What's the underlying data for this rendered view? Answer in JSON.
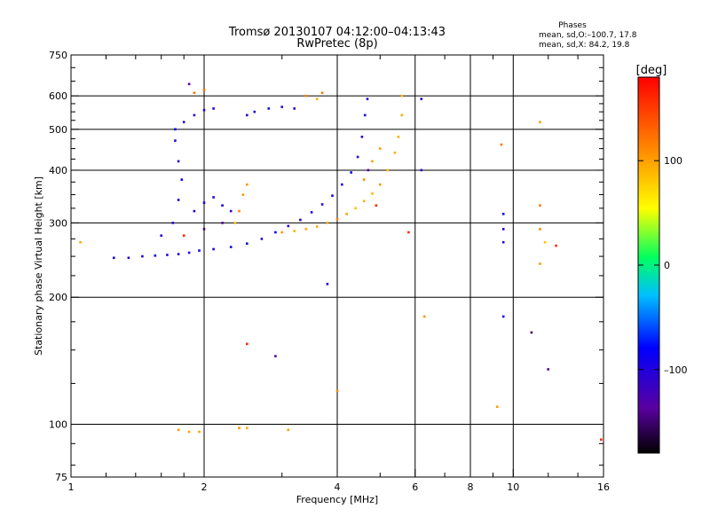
{
  "chart_data": {
    "type": "scatter",
    "title": "Tromsø 20130107 04:12:00–04:13:43",
    "subtitle": "RwPretec (8p)",
    "xlabel": "Frequency [MHz]",
    "ylabel": "Stationary phase Virtual Height [km]",
    "xscale": "log",
    "yscale": "log",
    "xlim": [
      1,
      16
    ],
    "ylim": [
      75,
      750
    ],
    "x_ticks": [
      1,
      2,
      4,
      6,
      8,
      10,
      16
    ],
    "x_tick_labels": [
      "1",
      "2",
      "4",
      "6",
      "8",
      "10",
      "16"
    ],
    "x_gridlines": [
      2,
      4,
      6,
      8,
      10
    ],
    "y_ticks": [
      75,
      100,
      200,
      300,
      400,
      500,
      600,
      750
    ],
    "y_tick_labels": [
      "75",
      "100",
      "200",
      "300",
      "400",
      "500",
      "600",
      "750"
    ],
    "y_gridlines": [
      100,
      200,
      300,
      400,
      500,
      600
    ],
    "grid": true,
    "stats": {
      "heading": "Phases",
      "line1": "mean, sd,O:–100.7, 17.8",
      "line2": "mean, sd,X:  84.2, 19.8"
    },
    "colorbar": {
      "label": "[deg]",
      "range": [
        -180,
        180
      ],
      "ticks": [
        100,
        0,
        -100
      ],
      "tick_labels": [
        "100",
        "0",
        "–100"
      ]
    },
    "series": [
      {
        "name": "O-mode trace (blue)",
        "phase_deg": -100,
        "points": [
          [
            1.25,
            248
          ],
          [
            1.35,
            248
          ],
          [
            1.45,
            250
          ],
          [
            1.55,
            251
          ],
          [
            1.65,
            252
          ],
          [
            1.75,
            253
          ],
          [
            1.85,
            255
          ],
          [
            1.95,
            258
          ],
          [
            2.1,
            260
          ],
          [
            2.3,
            263
          ],
          [
            2.5,
            268
          ],
          [
            2.7,
            275
          ],
          [
            2.9,
            285
          ],
          [
            3.1,
            295
          ],
          [
            3.3,
            305
          ],
          [
            3.5,
            318
          ],
          [
            3.7,
            332
          ],
          [
            3.9,
            348
          ],
          [
            4.1,
            370
          ],
          [
            4.3,
            395
          ],
          [
            4.45,
            430
          ],
          [
            4.55,
            480
          ],
          [
            4.62,
            540
          ],
          [
            4.68,
            590
          ],
          [
            1.6,
            280
          ],
          [
            1.7,
            300
          ],
          [
            1.75,
            340
          ],
          [
            1.78,
            380
          ],
          [
            1.75,
            420
          ],
          [
            1.72,
            470
          ],
          [
            1.72,
            500
          ],
          [
            1.8,
            520
          ],
          [
            1.9,
            540
          ],
          [
            2.0,
            555
          ],
          [
            2.1,
            560
          ],
          [
            1.9,
            320
          ],
          [
            2.0,
            335
          ],
          [
            2.1,
            345
          ],
          [
            2.2,
            330
          ],
          [
            2.3,
            320
          ],
          [
            2.5,
            540
          ],
          [
            2.6,
            550
          ],
          [
            2.8,
            560
          ],
          [
            3.0,
            565
          ],
          [
            3.2,
            560
          ],
          [
            9.5,
            315
          ],
          [
            9.5,
            290
          ],
          [
            9.5,
            270
          ],
          [
            9.5,
            180
          ],
          [
            6.2,
            400
          ],
          [
            6.2,
            590
          ],
          [
            3.8,
            215
          ]
        ]
      },
      {
        "name": "X-mode trace (yellow)",
        "phase_deg": 100,
        "points": [
          [
            3.0,
            285
          ],
          [
            3.2,
            287
          ],
          [
            3.4,
            290
          ],
          [
            3.6,
            294
          ],
          [
            3.8,
            300
          ],
          [
            4.0,
            306
          ],
          [
            4.2,
            315
          ],
          [
            4.4,
            325
          ],
          [
            4.6,
            338
          ],
          [
            4.8,
            352
          ],
          [
            5.0,
            370
          ],
          [
            5.2,
            400
          ],
          [
            5.4,
            440
          ],
          [
            5.5,
            480
          ],
          [
            5.6,
            540
          ],
          [
            5.6,
            600
          ],
          [
            4.6,
            380
          ],
          [
            4.8,
            420
          ],
          [
            5.0,
            450
          ],
          [
            2.4,
            320
          ],
          [
            2.45,
            350
          ],
          [
            2.5,
            370
          ],
          [
            2.35,
            300
          ],
          [
            1.75,
            97
          ],
          [
            1.85,
            96
          ],
          [
            1.95,
            96
          ],
          [
            2.4,
            98
          ],
          [
            2.5,
            98
          ],
          [
            3.1,
            97
          ],
          [
            3.4,
            600
          ],
          [
            3.6,
            590
          ],
          [
            11.5,
            520
          ],
          [
            11.5,
            290
          ],
          [
            11.5,
            240
          ],
          [
            11.8,
            270
          ],
          [
            6.3,
            180
          ],
          [
            9.2,
            110
          ],
          [
            1.05,
            270
          ],
          [
            4.0,
            120
          ]
        ]
      },
      {
        "name": "Mixed phase (purple / red / orange)",
        "phase_deg": -140,
        "points": [
          [
            1.8,
            280
          ],
          [
            2.0,
            290
          ],
          [
            2.2,
            300
          ],
          [
            1.9,
            610
          ],
          [
            2.0,
            620
          ],
          [
            1.85,
            640
          ],
          [
            4.7,
            400
          ],
          [
            4.9,
            330
          ],
          [
            5.8,
            285
          ],
          [
            12.0,
            135
          ],
          [
            2.5,
            155
          ],
          [
            2.9,
            145
          ],
          [
            3.7,
            610
          ],
          [
            11.0,
            165
          ],
          [
            11.5,
            330
          ],
          [
            12.5,
            265
          ],
          [
            15.8,
            92
          ],
          [
            9.4,
            460
          ]
        ]
      }
    ]
  }
}
